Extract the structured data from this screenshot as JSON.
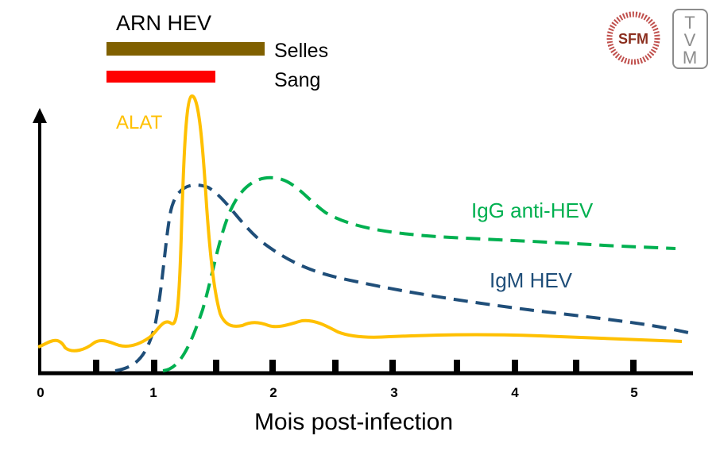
{
  "title": "ARN HEV",
  "x_axis": {
    "label": "Mois post-infection",
    "tick_labels": [
      "0",
      "1",
      "2",
      "3",
      "4",
      "5"
    ]
  },
  "bars": [
    {
      "label": "Selles",
      "color": "#806000"
    },
    {
      "label": "Sang",
      "color": "#ff0000"
    }
  ],
  "curves": {
    "alat": {
      "label": "ALAT",
      "color": "#ffc000"
    },
    "igg": {
      "label": "IgG anti-HEV",
      "color": "#00b050"
    },
    "igm": {
      "label": "IgM HEV",
      "color": "#1f4e79"
    }
  },
  "logos": {
    "sfm": {
      "text": "SFM",
      "ring_color": "#c0504d",
      "text_color": "#8b2e1e"
    },
    "tvm": {
      "letters": [
        "T",
        "V",
        "M"
      ],
      "color": "#8c8c8c"
    }
  }
}
